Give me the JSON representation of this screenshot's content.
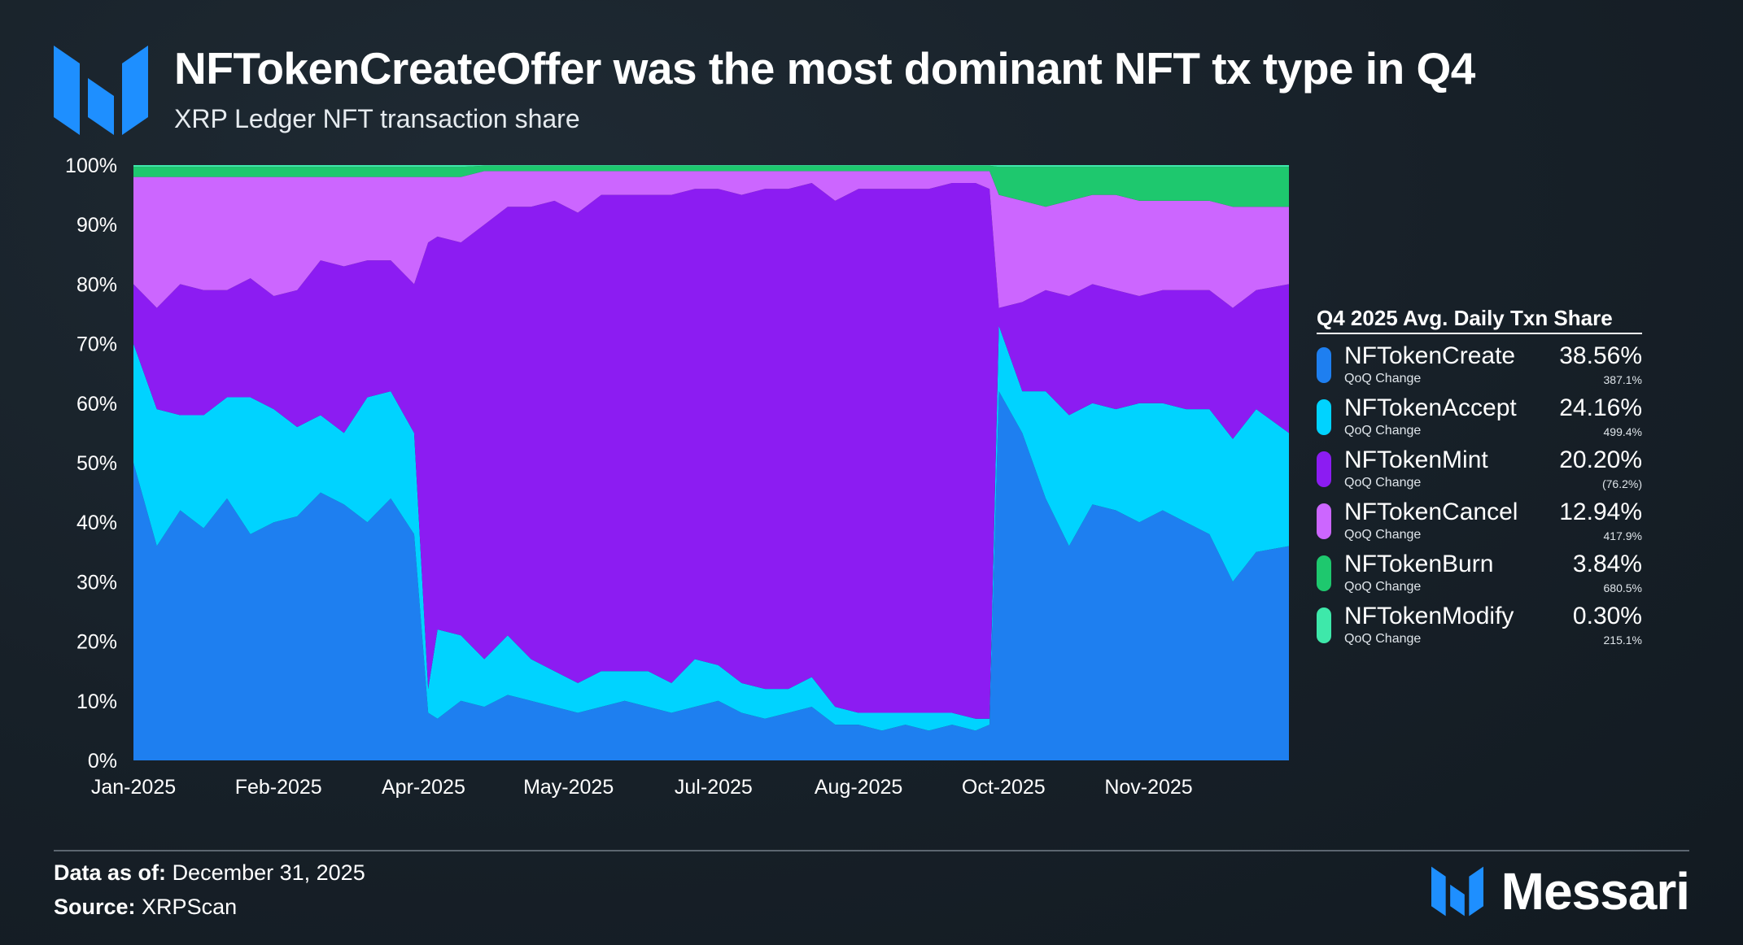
{
  "header": {
    "title": "NFTokenCreateOffer was the most dominant NFT tx type in Q4",
    "subtitle": "XRP Ledger NFT transaction share"
  },
  "legend": {
    "title": "Q4 2025 Avg. Daily Txn Share",
    "sub_label": "QoQ Change",
    "items": [
      {
        "name": "NFTokenCreate",
        "value": "38.56%",
        "change": "387.1%",
        "color": "#1e7ff0"
      },
      {
        "name": "NFTokenAccept",
        "value": "24.16%",
        "change": "499.4%",
        "color": "#00d3ff"
      },
      {
        "name": "NFTokenMint",
        "value": "20.20%",
        "change": "(76.2%)",
        "color": "#8c1cf2"
      },
      {
        "name": "NFTokenCancel",
        "value": "12.94%",
        "change": "417.9%",
        "color": "#cc66ff"
      },
      {
        "name": "NFTokenBurn",
        "value": "3.84%",
        "change": "680.5%",
        "color": "#1ec86e"
      },
      {
        "name": "NFTokenModify",
        "value": "0.30%",
        "change": "215.1%",
        "color": "#3ee8aa"
      }
    ]
  },
  "footer": {
    "data_label": "Data as of:",
    "data_value": "December 31, 2025",
    "source_label": "Source:",
    "source_value": "XRPScan",
    "brand": "Messari"
  },
  "chart_data": {
    "type": "area",
    "stacked": true,
    "normalized": true,
    "title": "NFTokenCreateOffer was the most dominant NFT tx type in Q4",
    "subtitle": "XRP Ledger NFT transaction share",
    "xlabel": "",
    "ylabel": "",
    "ylim": [
      0,
      100
    ],
    "y_ticks": [
      0,
      10,
      20,
      30,
      40,
      50,
      60,
      70,
      80,
      90,
      100
    ],
    "y_tick_labels": [
      "0%",
      "10%",
      "20%",
      "30%",
      "40%",
      "50%",
      "60%",
      "70%",
      "80%",
      "90%",
      "100%"
    ],
    "x_ticks": [
      0,
      31,
      62,
      93,
      124,
      155,
      186,
      217
    ],
    "x_tick_labels": [
      "Jan-2025",
      "Feb-2025",
      "Apr-2025",
      "May-2025",
      "Jul-2025",
      "Aug-2025",
      "Oct-2025",
      "Nov-2025"
    ],
    "x_max": 247,
    "grid": false,
    "legend_position": "right",
    "x": [
      0,
      5,
      10,
      15,
      20,
      25,
      30,
      35,
      40,
      45,
      50,
      55,
      60,
      63,
      65,
      70,
      75,
      80,
      85,
      90,
      95,
      100,
      105,
      110,
      115,
      120,
      125,
      130,
      135,
      140,
      145,
      150,
      155,
      160,
      165,
      170,
      175,
      180,
      183,
      185,
      190,
      195,
      200,
      205,
      210,
      215,
      220,
      225,
      230,
      235,
      240,
      247
    ],
    "series": [
      {
        "name": "NFTokenCreate",
        "color": "#1e7ff0",
        "values": [
          50,
          36,
          42,
          39,
          44,
          38,
          40,
          41,
          45,
          43,
          40,
          44,
          38,
          8,
          7,
          10,
          9,
          11,
          10,
          9,
          8,
          9,
          10,
          9,
          8,
          9,
          10,
          8,
          7,
          8,
          9,
          6,
          6,
          5,
          6,
          5,
          6,
          5,
          6,
          62,
          55,
          44,
          36,
          43,
          42,
          40,
          42,
          40,
          38,
          30,
          35,
          36
        ]
      },
      {
        "name": "NFTokenAccept",
        "color": "#00d3ff",
        "values": [
          20,
          23,
          16,
          19,
          17,
          23,
          19,
          15,
          13,
          12,
          21,
          18,
          17,
          4,
          15,
          11,
          8,
          10,
          7,
          6,
          5,
          6,
          5,
          6,
          5,
          8,
          6,
          5,
          5,
          4,
          5,
          3,
          2,
          3,
          2,
          3,
          2,
          2,
          1,
          11,
          7,
          18,
          22,
          17,
          17,
          20,
          18,
          19,
          21,
          24,
          24,
          19
        ]
      },
      {
        "name": "NFTokenMint",
        "color": "#8c1cf2",
        "values": [
          10,
          17,
          22,
          21,
          18,
          20,
          19,
          23,
          26,
          28,
          23,
          22,
          25,
          75,
          66,
          66,
          73,
          72,
          76,
          79,
          79,
          80,
          80,
          80,
          82,
          79,
          80,
          82,
          84,
          84,
          83,
          85,
          88,
          88,
          88,
          88,
          89,
          90,
          89,
          3,
          15,
          17,
          20,
          20,
          20,
          18,
          19,
          20,
          20,
          22,
          20,
          25
        ]
      },
      {
        "name": "NFTokenCancel",
        "color": "#cc66ff",
        "values": [
          18,
          22,
          18,
          19,
          19,
          17,
          20,
          19,
          14,
          15,
          14,
          14,
          18,
          11,
          10,
          11,
          9,
          6,
          6,
          5,
          7,
          4,
          4,
          4,
          4,
          3,
          3,
          4,
          3,
          3,
          2,
          5,
          3,
          3,
          3,
          3,
          2,
          2,
          3,
          19,
          17,
          14,
          16,
          15,
          16,
          16,
          15,
          15,
          15,
          17,
          14,
          13
        ]
      },
      {
        "name": "NFTokenBurn",
        "color": "#1ec86e",
        "values": [
          1.7,
          1.7,
          1.7,
          1.7,
          1.7,
          1.7,
          1.7,
          1.7,
          1.7,
          1.7,
          1.7,
          1.7,
          1.7,
          1.7,
          1.7,
          1.7,
          0.9,
          0.9,
          0.9,
          0.9,
          0.9,
          0.9,
          0.9,
          0.9,
          0.9,
          0.9,
          0.9,
          0.9,
          0.9,
          0.9,
          0.9,
          0.9,
          0.9,
          0.9,
          0.9,
          0.9,
          0.9,
          0.9,
          0.9,
          4.7,
          5.7,
          6.7,
          5.7,
          4.7,
          4.7,
          5.7,
          5.7,
          5.7,
          5.7,
          6.7,
          6.7,
          6.7
        ]
      },
      {
        "name": "NFTokenModify",
        "color": "#3ee8aa",
        "values": [
          0.3,
          0.3,
          0.3,
          0.3,
          0.3,
          0.3,
          0.3,
          0.3,
          0.3,
          0.3,
          0.3,
          0.3,
          0.3,
          0.3,
          0.3,
          0.3,
          0.1,
          0.1,
          0.1,
          0.1,
          0.1,
          0.1,
          0.1,
          0.1,
          0.1,
          0.1,
          0.1,
          0.1,
          0.1,
          0.1,
          0.1,
          0.1,
          0.1,
          0.1,
          0.1,
          0.1,
          0.1,
          0.1,
          0.1,
          0.3,
          0.3,
          0.3,
          0.3,
          0.3,
          0.3,
          0.3,
          0.3,
          0.3,
          0.3,
          0.3,
          0.3,
          0.3
        ]
      }
    ]
  }
}
